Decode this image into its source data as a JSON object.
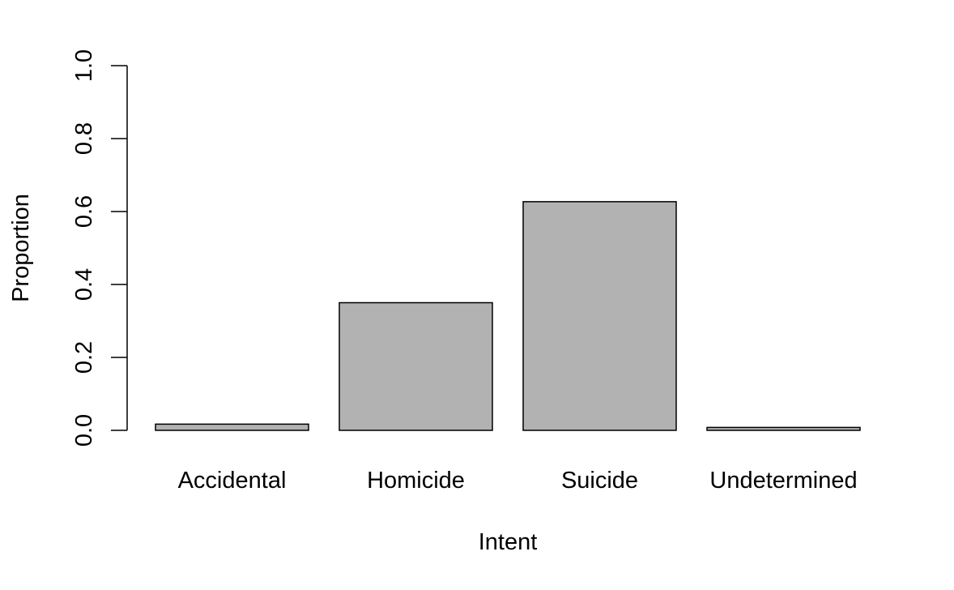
{
  "chart_data": {
    "type": "bar",
    "title": "",
    "xlabel": "Intent",
    "ylabel": "Proportion",
    "categories": [
      "Accidental",
      "Homicide",
      "Suicide",
      "Undetermined"
    ],
    "values": [
      0.017,
      0.35,
      0.627,
      0.008
    ],
    "ylim": [
      0,
      1
    ],
    "yticks": [
      "0.0",
      "0.2",
      "0.4",
      "0.6",
      "0.8",
      "1.0"
    ],
    "grid": false,
    "colors": {
      "bar_fill": "#b2b2b2",
      "bar_stroke": "#000000"
    }
  }
}
